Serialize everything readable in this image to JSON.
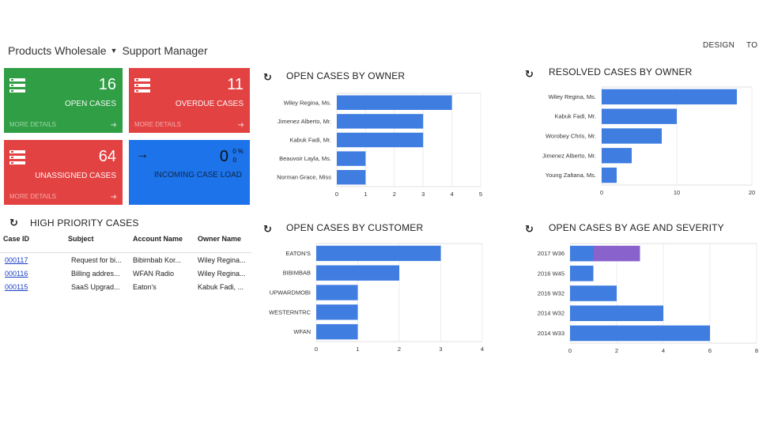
{
  "header": {
    "company": "Products Wholesale",
    "dashboard": "Support Manager",
    "design_label": "DESIGN",
    "tools_label": "TO"
  },
  "tiles": [
    {
      "value": "16",
      "label": "OPEN CASES",
      "more": "MORE DETAILS",
      "color": "#2f9e44"
    },
    {
      "value": "11",
      "label": "OVERDUE CASES",
      "more": "MORE DETAILS",
      "color": "#e34242"
    },
    {
      "value": "64",
      "label": "UNASSIGNED CASES",
      "more": "MORE DETAILS",
      "color": "#e34242"
    },
    {
      "value": "0",
      "label": "INCOMING CASE LOAD",
      "pct": "0 %",
      "sub": "0",
      "color": "#1c73ea"
    }
  ],
  "high_priority": {
    "title": "HIGH PRIORITY CASES",
    "columns": [
      "Case ID",
      "Subject",
      "Account Name",
      "Owner Name"
    ],
    "rows": [
      [
        "000117",
        "Request for bi...",
        "Bibimbab Kor...",
        "Wiley Regina..."
      ],
      [
        "000116",
        "Billing addres...",
        "WFAN Radio",
        "Wiley Regina..."
      ],
      [
        "000115",
        "SaaS Upgrad...",
        "Eaton's",
        "Kabuk Fadi, ..."
      ]
    ]
  },
  "chart_titles": {
    "owner": "OPEN CASES BY OWNER",
    "resolved": "RESOLVED CASES BY OWNER",
    "customer": "OPEN CASES BY CUSTOMER",
    "age": "OPEN CASES BY AGE AND SEVERITY"
  },
  "colors": {
    "bar": "#3f7de0",
    "bar_alt": "#8a62cc"
  },
  "chart_data": [
    {
      "type": "bar",
      "title": "OPEN CASES BY OWNER",
      "categories": [
        "Wiley Regina, Ms.",
        "Jimenez Alberto, Mr.",
        "Kabuk Fadi, Mr.",
        "Beauvoir Layla, Ms.",
        "Norman Grace, Miss"
      ],
      "values": [
        4,
        3,
        3,
        1,
        1
      ],
      "xlim": [
        0,
        5
      ],
      "ticks": [
        "0",
        "1",
        "2",
        "3",
        "4",
        "5"
      ]
    },
    {
      "type": "bar",
      "title": "RESOLVED CASES BY OWNER",
      "categories": [
        "Wiley Regina, Ms.",
        "Kabuk Fadi, Mr.",
        "Worobey Chris, Mr.",
        "Jimenez Alberto, Mr.",
        "Young Zaltana, Ms."
      ],
      "values": [
        18,
        10,
        8,
        4,
        2
      ],
      "xlim": [
        0,
        20
      ],
      "ticks": [
        "0",
        "10",
        "20"
      ]
    },
    {
      "type": "bar",
      "title": "OPEN CASES BY CUSTOMER",
      "categories": [
        "EATON'S",
        "BIBIMBAB",
        "UPWARDMOBI",
        "WESTERNTRC",
        "WFAN"
      ],
      "values": [
        3,
        2,
        1,
        1,
        1
      ],
      "xlim": [
        0,
        4
      ],
      "ticks": [
        "0",
        "1",
        "2",
        "3",
        "4"
      ]
    },
    {
      "type": "bar",
      "title": "OPEN CASES BY AGE AND SEVERITY",
      "categories": [
        "2017 W36",
        "2016 W45",
        "2016 W32",
        "2014 W32",
        "2014 W33"
      ],
      "series": [
        {
          "values": [
            1,
            1,
            2,
            4,
            6
          ]
        },
        {
          "values": [
            2,
            0,
            0,
            0,
            0
          ]
        }
      ],
      "xlim": [
        0,
        8
      ],
      "ticks": [
        "0",
        "2",
        "4",
        "6",
        "8"
      ]
    }
  ]
}
